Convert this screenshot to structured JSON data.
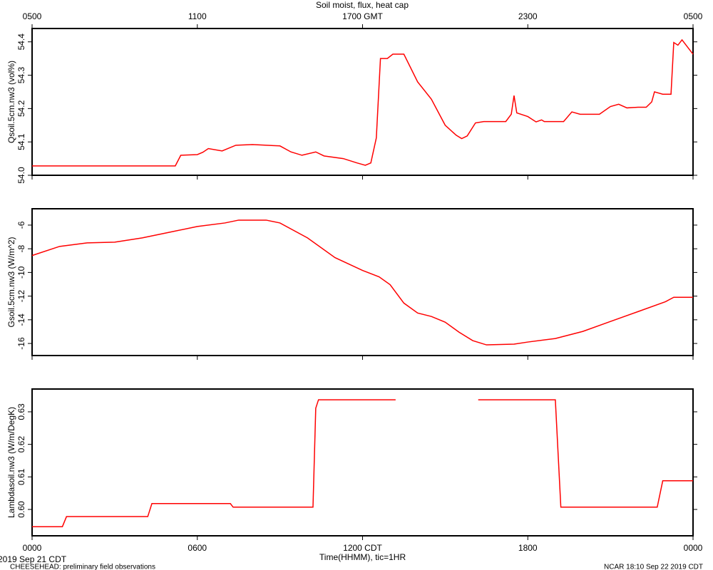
{
  "title": "Soil moist, flux, heat cap",
  "footer": {
    "date": "2019 Sep 21 CDT",
    "note": "CHEESEHEAD: preliminary field observations",
    "stamp": "NCAR 18:10 Sep 22 2019 CDT"
  },
  "chart_data": [
    {
      "type": "line",
      "ylabel": "Qsoil.5cm.nw3 (vol%)",
      "color": "#ff0000",
      "xlim": [
        0,
        24
      ],
      "xticks": [
        0,
        6,
        12,
        18,
        24
      ],
      "x2ticks": [
        {
          "value": 0,
          "label": "0500"
        },
        {
          "value": 6,
          "label": "1100"
        },
        {
          "value": 12,
          "label": "1700 GMT"
        },
        {
          "value": 18,
          "label": "2300"
        },
        {
          "value": 24,
          "label": "0500"
        }
      ],
      "ylim": [
        54.0,
        54.44
      ],
      "yticks": [
        {
          "value": 54,
          "label": "54.0"
        },
        54.1,
        54.2,
        54.3,
        54.4
      ],
      "x": [
        0,
        5.2,
        5.4,
        6.0,
        6.2,
        6.4,
        6.9,
        7.4,
        8.0,
        9.0,
        9.4,
        9.8,
        10.3,
        10.6,
        11.3,
        11.8,
        12.1,
        12.3,
        12.5,
        12.65,
        12.9,
        13.1,
        13.5,
        14.0,
        14.5,
        15.0,
        15.4,
        15.6,
        15.8,
        16.1,
        16.4,
        17.2,
        17.4,
        17.5,
        17.6,
        18.0,
        18.3,
        18.5,
        18.6,
        19.3,
        19.6,
        19.9,
        20.6,
        21.0,
        21.3,
        21.6,
        22.0,
        22.3,
        22.5,
        22.6,
        22.9,
        23.2,
        23.3,
        23.45,
        23.6,
        24
      ],
      "values": [
        54.028,
        54.028,
        54.06,
        54.062,
        54.069,
        54.08,
        54.073,
        54.09,
        54.092,
        54.088,
        54.07,
        54.06,
        54.07,
        54.058,
        54.05,
        54.037,
        54.03,
        54.037,
        54.112,
        54.35,
        54.35,
        54.363,
        54.363,
        54.28,
        54.228,
        54.15,
        54.12,
        54.11,
        54.118,
        54.157,
        54.161,
        54.161,
        54.183,
        54.239,
        54.187,
        54.176,
        54.16,
        54.166,
        54.161,
        54.161,
        54.19,
        54.183,
        54.183,
        54.206,
        54.213,
        54.202,
        54.204,
        54.204,
        54.22,
        54.25,
        54.243,
        54.243,
        54.398,
        54.39,
        54.406,
        54.363
      ]
    },
    {
      "type": "line",
      "ylabel": "Gsoil.5cm.nw3 (W/m^2)",
      "color": "#ff0000",
      "xlim": [
        0,
        24
      ],
      "xticks": [
        0,
        6,
        12,
        18,
        24
      ],
      "ylim": [
        -17.02,
        -4.62
      ],
      "yticks": [
        -16,
        -14,
        -12,
        -10,
        -8,
        -6
      ],
      "x": [
        0,
        1,
        2,
        3,
        4,
        5,
        6,
        7,
        7.5,
        8.5,
        9,
        10,
        11,
        12,
        12.6,
        13,
        13.5,
        14,
        14.5,
        15,
        15.5,
        16,
        16.5,
        17.5,
        18,
        19,
        20,
        21,
        22,
        23,
        23.3,
        24
      ],
      "values": [
        -8.57,
        -7.8,
        -7.5,
        -7.44,
        -7.08,
        -6.6,
        -6.12,
        -5.82,
        -5.58,
        -5.58,
        -5.82,
        -7.08,
        -8.75,
        -9.83,
        -10.37,
        -11.03,
        -12.59,
        -13.43,
        -13.72,
        -14.2,
        -15.04,
        -15.76,
        -16.12,
        -16.06,
        -15.88,
        -15.58,
        -14.98,
        -14.14,
        -13.31,
        -12.47,
        -12.1,
        -12.1
      ]
    },
    {
      "type": "line",
      "ylabel": "Lambdasoil.nw3 (W/m/DegK)",
      "xlabel": "Time(HHMM), tic=1HR",
      "color": "#ff0000",
      "xlim": [
        0,
        24
      ],
      "xticks": [
        {
          "value": 0,
          "label": "0000"
        },
        {
          "value": 6,
          "label": "0600"
        },
        {
          "value": 12,
          "label": "1200 CDT"
        },
        {
          "value": 18,
          "label": "1800"
        },
        {
          "value": 24,
          "label": "0000"
        }
      ],
      "ylim": [
        0.5919,
        0.637
      ],
      "yticks": [
        {
          "value": 0.6,
          "label": "0.60"
        },
        0.61,
        0.62,
        0.63
      ],
      "x": [
        0,
        1.1,
        1.25,
        4.2,
        4.35,
        7.2,
        7.3,
        10.2,
        10.3,
        10.4,
        13.2,
        14.7,
        16.2,
        19.0,
        19.2,
        22.7,
        22.9,
        24
      ],
      "values": [
        0.5947,
        0.5947,
        0.5978,
        0.5978,
        0.6018,
        0.6018,
        0.6007,
        0.6007,
        0.6311,
        0.6337,
        0.6337,
        null,
        0.6337,
        0.6337,
        0.6007,
        0.6007,
        0.6088,
        0.6088
      ]
    }
  ]
}
